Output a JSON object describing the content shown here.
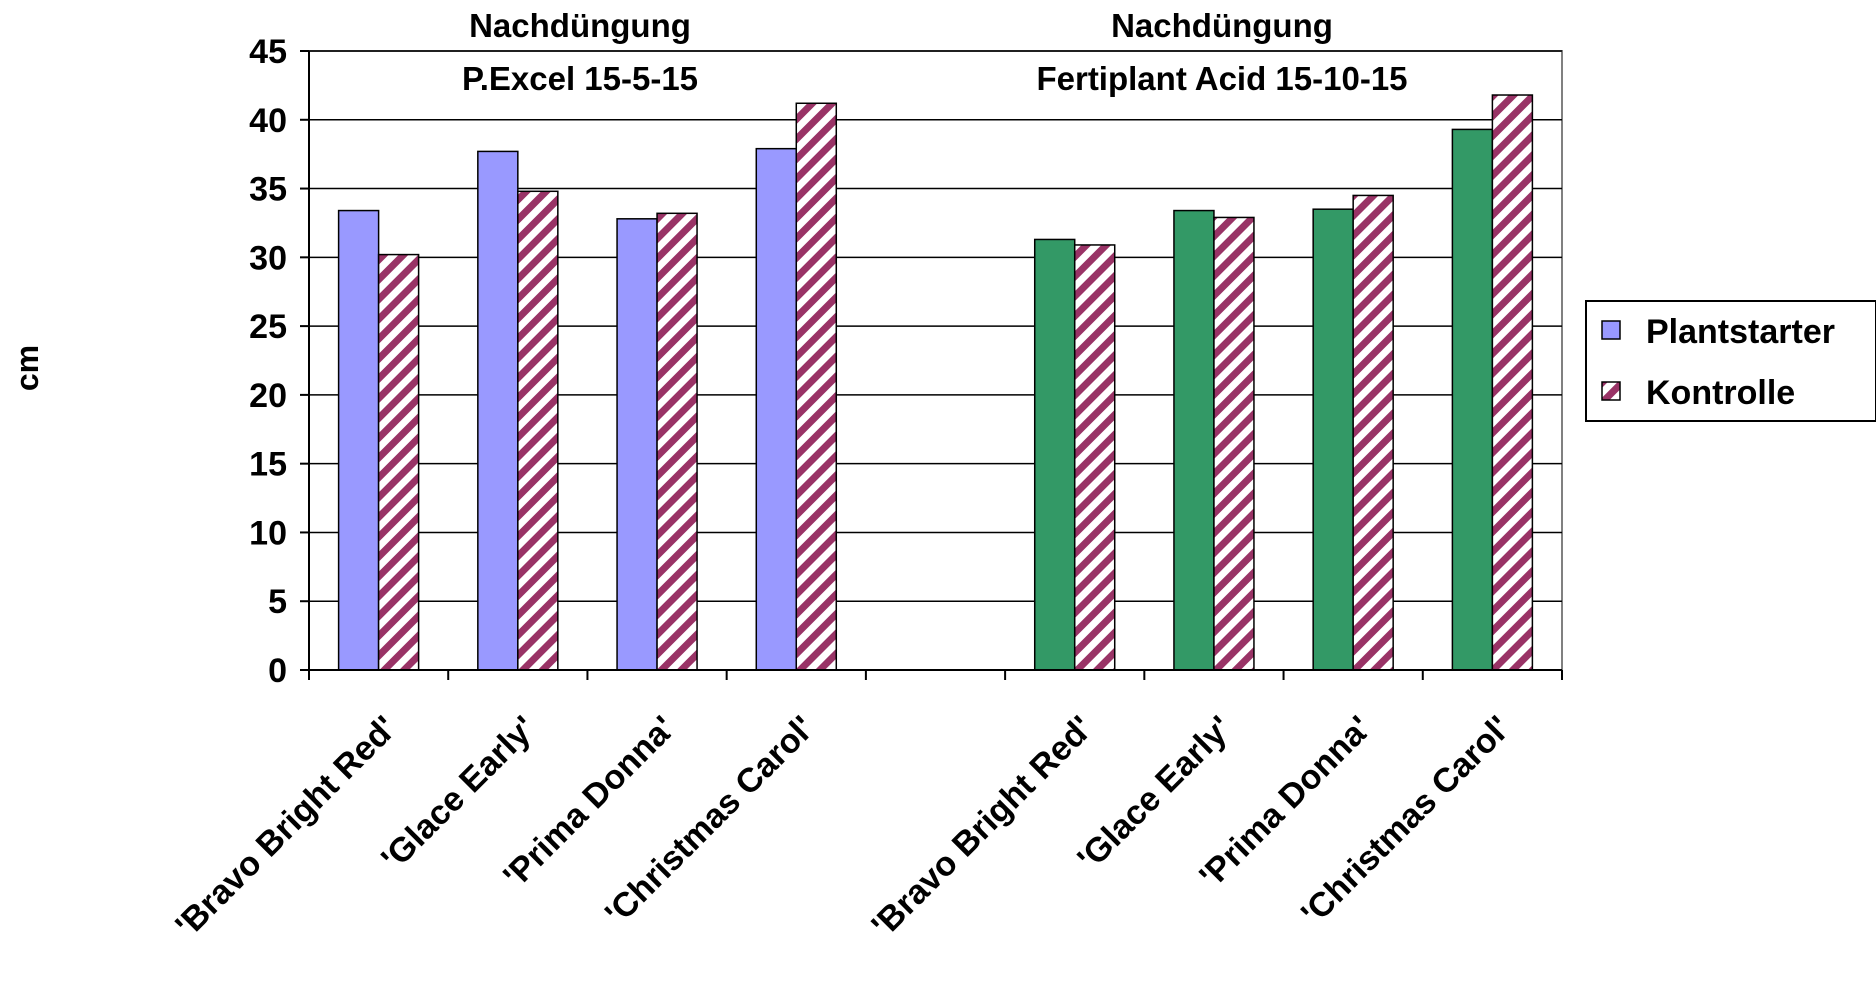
{
  "chart_data": {
    "type": "bar",
    "ylabel": "cm",
    "ylim": [
      0,
      45
    ],
    "yticks": [
      0,
      5,
      10,
      15,
      20,
      25,
      30,
      35,
      40,
      45
    ],
    "grid": true,
    "legend_position": "right",
    "groups": [
      {
        "title_line1": "Nachdüngung",
        "title_line2": "P.Excel 15-5-15",
        "categories": [
          "'Bravo Bright Red'",
          "'Glace Early'",
          "'Prima Donna'",
          "'Christmas Carol'"
        ],
        "plantstarter_color": "#9999ff",
        "series": [
          {
            "name": "Plantstarter",
            "values": [
              33.4,
              37.7,
              32.8,
              37.9
            ]
          },
          {
            "name": "Kontrolle",
            "values": [
              30.2,
              34.8,
              33.2,
              41.2
            ]
          }
        ]
      },
      {
        "title_line1": "Nachdüngung",
        "title_line2": "Fertiplant Acid 15-10-15",
        "categories": [
          "'Bravo Bright Red'",
          "'Glace Early'",
          "'Prima Donna'",
          "'Christmas Carol'"
        ],
        "plantstarter_color": "#339966",
        "series": [
          {
            "name": "Plantstarter",
            "values": [
              31.3,
              33.4,
              33.5,
              39.3
            ]
          },
          {
            "name": "Kontrolle",
            "values": [
              30.9,
              32.9,
              34.5,
              41.8
            ]
          }
        ]
      }
    ],
    "legend": [
      {
        "name": "Plantstarter",
        "color": "#9999ff"
      },
      {
        "name": "Kontrolle",
        "color": "#993366",
        "pattern": "diagonal-stripes"
      }
    ],
    "kontrolle_color": "#993366"
  }
}
